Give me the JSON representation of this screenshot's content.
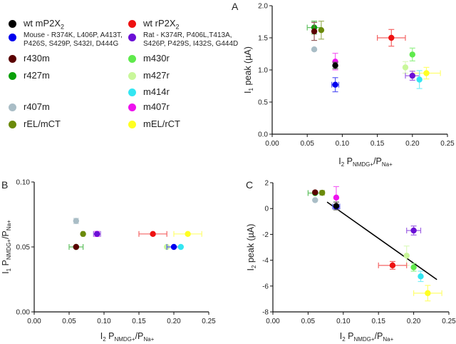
{
  "legend": {
    "items": [
      {
        "key": "wt_m",
        "label": "wt mP2X",
        "sub": "2",
        "color": "#000000",
        "col": 0,
        "row": 0
      },
      {
        "key": "mouse_mut",
        "label": "Mouse - R374K, L406P, A413T, P426S, S429P, S432I, D444G",
        "color": "#0000ee",
        "col": 0,
        "row": 1,
        "small": true
      },
      {
        "key": "r430m",
        "label": "r430m",
        "color": "#5a0000",
        "col": 0,
        "row": 2
      },
      {
        "key": "r427m",
        "label": "r427m",
        "color": "#0aa00a",
        "col": 0,
        "row": 3
      },
      {
        "key": "r407m",
        "label": "r407m",
        "color": "#a9bdc6",
        "col": 0,
        "row": 5
      },
      {
        "key": "rEL_mCT",
        "label": "rEL/mCT",
        "color": "#6b8a0a",
        "col": 0,
        "row": 6
      },
      {
        "key": "wt_r",
        "label": "wt rP2X",
        "sub": "2",
        "color": "#ee1111",
        "col": 1,
        "row": 0
      },
      {
        "key": "rat_mut",
        "label": "Rat - K374R, P406L,T413A, S426P, P429S, I432S, G444D",
        "color": "#6a0fd6",
        "col": 1,
        "row": 1,
        "small": true
      },
      {
        "key": "m430r",
        "label": "m430r",
        "color": "#5fea4c",
        "col": 1,
        "row": 2
      },
      {
        "key": "m427r",
        "label": "m427r",
        "color": "#c9f79a",
        "col": 1,
        "row": 3
      },
      {
        "key": "m414r",
        "label": "m414r",
        "color": "#33e6f2",
        "col": 1,
        "row": 4
      },
      {
        "key": "m407r",
        "label": "m407r",
        "color": "#ee11ee",
        "col": 1,
        "row": 5
      },
      {
        "key": "mEL_rCT",
        "label": "mEL/rCT",
        "color": "#ffff22",
        "col": 1,
        "row": 6
      }
    ]
  },
  "chart_data": [
    {
      "panel": "A",
      "type": "scatter",
      "xlabel": "I2 PNMDG+/PNa+",
      "ylabel": "I1 peak (µA)",
      "xlim": [
        0,
        0.25
      ],
      "ylim": [
        0,
        2.0
      ],
      "xticks": [
        "0.00",
        "0.05",
        "0.10",
        "0.15",
        "0.20",
        "0.25"
      ],
      "yticks": [
        "0.0",
        "0.5",
        "1.0",
        "1.5",
        "2.0"
      ],
      "points": [
        {
          "key": "r427m",
          "x": 0.06,
          "y": 1.66,
          "xerr": 0.01,
          "yerr": 0.1
        },
        {
          "key": "r430m",
          "x": 0.06,
          "y": 1.6,
          "xerr": 0.0,
          "yerr": 0.14
        },
        {
          "key": "rEL_mCT",
          "x": 0.07,
          "y": 1.62,
          "xerr": 0.0,
          "yerr": 0.14
        },
        {
          "key": "r407m",
          "x": 0.06,
          "y": 1.32,
          "xerr": 0,
          "yerr": 0
        },
        {
          "key": "m407r",
          "x": 0.09,
          "y": 1.13,
          "xerr": 0,
          "yerr": 0.13
        },
        {
          "key": "wt_m",
          "x": 0.09,
          "y": 1.07,
          "xerr": 0,
          "yerr": 0.05
        },
        {
          "key": "mouse_mut",
          "x": 0.09,
          "y": 0.77,
          "xerr": 0.005,
          "yerr": 0.11
        },
        {
          "key": "wt_r",
          "x": 0.17,
          "y": 1.5,
          "xerr": 0.02,
          "yerr": 0.13
        },
        {
          "key": "m430r",
          "x": 0.2,
          "y": 1.24,
          "xerr": 0,
          "yerr": 0.1
        },
        {
          "key": "m427r",
          "x": 0.19,
          "y": 1.04,
          "xerr": 0,
          "yerr": 0.09
        },
        {
          "key": "mEL_rCT",
          "x": 0.22,
          "y": 0.95,
          "xerr": 0.02,
          "yerr": 0.09
        },
        {
          "key": "rat_mut",
          "x": 0.2,
          "y": 0.91,
          "xerr": 0.01,
          "yerr": 0.07
        },
        {
          "key": "m414r",
          "x": 0.21,
          "y": 0.85,
          "xerr": 0,
          "yerr": 0.14
        }
      ]
    },
    {
      "panel": "B",
      "type": "scatter",
      "xlabel": "I2 PNMDG+/PNa+",
      "ylabel": "I1 PNMDG+/PNa+",
      "xlim": [
        0,
        0.25
      ],
      "ylim": [
        0,
        0.1
      ],
      "xticks": [
        "0.00",
        "0.05",
        "0.10",
        "0.15",
        "0.20",
        "0.25"
      ],
      "yticks": [
        "0.00",
        "0.05",
        "0.10"
      ],
      "points": [
        {
          "key": "r407m",
          "x": 0.06,
          "y": 0.07,
          "xerr": 0,
          "yerr": 0.002
        },
        {
          "key": "rEL_mCT",
          "x": 0.07,
          "y": 0.06,
          "xerr": 0.002,
          "yerr": 0
        },
        {
          "key": "m407r",
          "x": 0.09,
          "y": 0.06,
          "xerr": 0,
          "yerr": 0.002
        },
        {
          "key": "rat_mut",
          "x": 0.09,
          "y": 0.06,
          "xerr": 0.005,
          "yerr": 0
        },
        {
          "key": "r427m",
          "x": 0.06,
          "y": 0.05,
          "xerr": 0.01,
          "yerr": 0
        },
        {
          "key": "r430m",
          "x": 0.06,
          "y": 0.05,
          "xerr": 0,
          "yerr": 0
        },
        {
          "key": "wt_r",
          "x": 0.17,
          "y": 0.06,
          "xerr": 0.02,
          "yerr": 0
        },
        {
          "key": "mEL_rCT",
          "x": 0.22,
          "y": 0.06,
          "xerr": 0.02,
          "yerr": 0
        },
        {
          "key": "m427r",
          "x": 0.19,
          "y": 0.05,
          "xerr": 0,
          "yerr": 0
        },
        {
          "key": "mouse_mut",
          "x": 0.2,
          "y": 0.05,
          "xerr": 0.01,
          "yerr": 0
        },
        {
          "key": "m414r",
          "x": 0.21,
          "y": 0.05,
          "xerr": 0,
          "yerr": 0
        }
      ]
    },
    {
      "panel": "C",
      "type": "scatter",
      "xlabel": "I2 PNMDG+/PNa+",
      "ylabel": "I2 peak (µA)",
      "xlim": [
        0,
        0.25
      ],
      "ylim": [
        -8,
        2
      ],
      "xticks": [
        "0.00",
        "0.05",
        "0.10",
        "0.15",
        "0.20",
        "0.25"
      ],
      "yticks": [
        "-8",
        "-6",
        "-4",
        "-2",
        "0",
        "2"
      ],
      "fit_line": {
        "x": [
          0.077,
          0.233
        ],
        "y": [
          0.5,
          -5.5
        ]
      },
      "points": [
        {
          "key": "r427m",
          "x": 0.06,
          "y": 1.2,
          "xerr": 0.01,
          "yerr": 0
        },
        {
          "key": "r430m",
          "x": 0.06,
          "y": 1.25,
          "xerr": 0,
          "yerr": 0.1
        },
        {
          "key": "rEL_mCT",
          "x": 0.07,
          "y": 1.22,
          "xerr": 0.003,
          "yerr": 0.1
        },
        {
          "key": "r407m",
          "x": 0.06,
          "y": 0.65,
          "xerr": 0,
          "yerr": 0
        },
        {
          "key": "m407r",
          "x": 0.09,
          "y": 0.85,
          "xerr": 0,
          "yerr": 0.85
        },
        {
          "key": "mouse_mut",
          "x": 0.09,
          "y": 0.15,
          "xerr": 0.005,
          "yerr": 0.15
        },
        {
          "key": "wt_m",
          "x": 0.09,
          "y": 0.2,
          "xerr": 0,
          "yerr": 0.3
        },
        {
          "key": "rat_mut",
          "x": 0.2,
          "y": -1.7,
          "xerr": 0.01,
          "yerr": 0.35
        },
        {
          "key": "m427r",
          "x": 0.19,
          "y": -3.65,
          "xerr": 0,
          "yerr": 0.75
        },
        {
          "key": "wt_r",
          "x": 0.17,
          "y": -4.4,
          "xerr": 0.02,
          "yerr": 0.3
        },
        {
          "key": "m430r",
          "x": 0.2,
          "y": -4.55,
          "xerr": 0,
          "yerr": 0.3
        },
        {
          "key": "m414r",
          "x": 0.21,
          "y": -5.25,
          "xerr": 0,
          "yerr": 0.4
        },
        {
          "key": "mEL_rCT",
          "x": 0.22,
          "y": -6.55,
          "xerr": 0.02,
          "yerr": 0.6
        }
      ]
    }
  ]
}
